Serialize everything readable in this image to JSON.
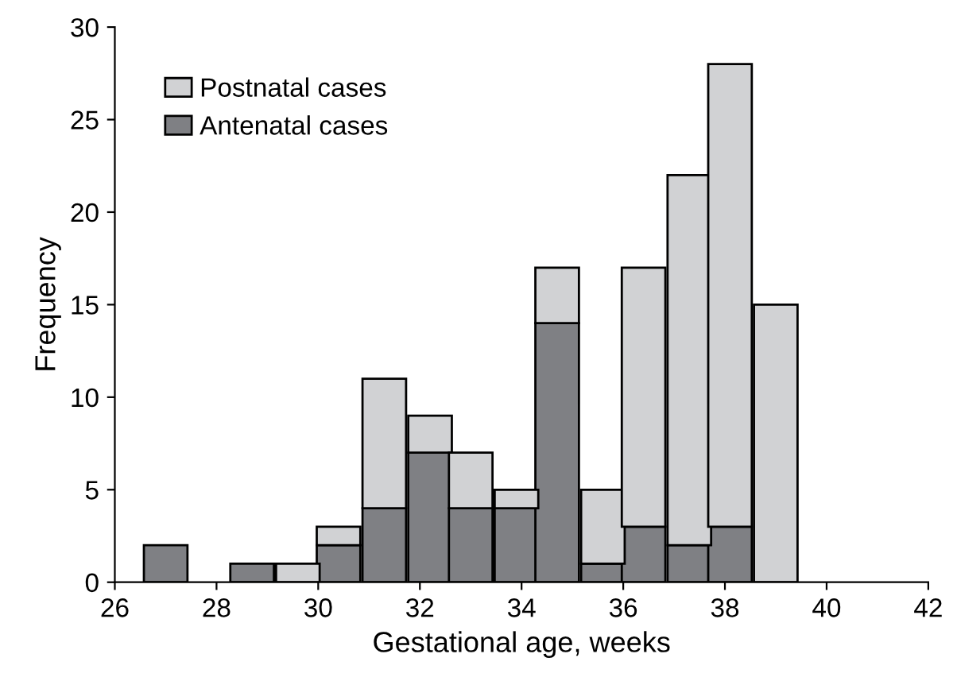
{
  "chart_data": {
    "type": "bar",
    "stacked": true,
    "xlabel": "Gestational age, weeks",
    "ylabel": "Frequency",
    "x": [
      27.0,
      27.9,
      28.7,
      29.6,
      30.4,
      31.3,
      32.2,
      33.0,
      33.9,
      34.7,
      35.6,
      36.4,
      37.3,
      38.1,
      39.0
    ],
    "series": [
      {
        "name": "Antenatal cases",
        "color": "#7f8084",
        "values": [
          2,
          null,
          1,
          null,
          2,
          4,
          7,
          4,
          4,
          14,
          1,
          3,
          2,
          3,
          null
        ]
      },
      {
        "name": "Postnatal cases",
        "color": "#d1d2d4",
        "values": [
          null,
          null,
          null,
          1,
          1,
          7,
          2,
          3,
          1,
          3,
          4,
          14,
          20,
          25,
          15
        ]
      }
    ],
    "xlim": [
      26,
      42
    ],
    "xticks": [
      26,
      28,
      30,
      32,
      34,
      36,
      38,
      40,
      42
    ],
    "ylim": [
      0,
      30
    ],
    "yticks": [
      0,
      5,
      10,
      15,
      20,
      25,
      30
    ],
    "grid": false,
    "legend": "top left"
  }
}
